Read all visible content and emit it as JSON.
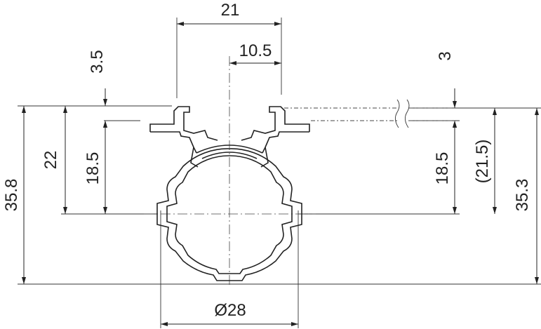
{
  "dimensions": {
    "width_top": "21",
    "half_width": "10.5",
    "rail_thickness_left": "3.5",
    "rail_thickness_right": "3",
    "height_22": "22",
    "height_18_5_left": "18.5",
    "height_35_8": "35.8",
    "height_18_5_right": "18.5",
    "height_21_5_ref": "(21.5)",
    "height_35_3": "35.3",
    "diameter": "Ø28"
  }
}
